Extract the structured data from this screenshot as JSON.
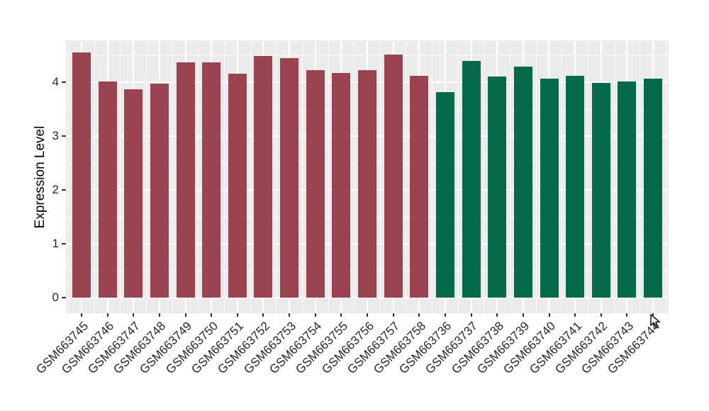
{
  "figure": {
    "background": "#FFFFFF"
  },
  "chart_data": {
    "type": "bar",
    "title": "",
    "xlabel": "",
    "ylabel": "Expression Level",
    "ylim": [
      -0.27,
      4.78
    ],
    "yticks": [
      0,
      1,
      2,
      3,
      4
    ],
    "grid": "on",
    "legend": "none",
    "panel_background": "#EBEBEB",
    "gridline_color": "#FFFFFF",
    "tick_mark_color": "#333333",
    "axis_text_color": "#262626",
    "group_colors": [
      "#9B4451",
      "#056A4B"
    ],
    "categories": [
      "GSM663745",
      "GSM663746",
      "GSM663747",
      "GSM663748",
      "GSM663749",
      "GSM663750",
      "GSM663751",
      "GSM663752",
      "GSM663753",
      "GSM663754",
      "GSM663755",
      "GSM663756",
      "GSM663757",
      "GSM663758",
      "GSM663736",
      "GSM663737",
      "GSM663738",
      "GSM663739",
      "GSM663740",
      "GSM663741",
      "GSM663742",
      "GSM663743",
      "GSM663744"
    ],
    "values": [
      4.55,
      4.01,
      3.87,
      3.98,
      4.37,
      4.37,
      4.16,
      4.49,
      4.45,
      4.22,
      4.17,
      4.22,
      4.51,
      4.12,
      3.82,
      4.39,
      4.1,
      4.29,
      4.07,
      4.12,
      3.99,
      4.01,
      4.07
    ],
    "bar_groups": [
      0,
      0,
      0,
      0,
      0,
      0,
      0,
      0,
      0,
      0,
      0,
      0,
      0,
      0,
      1,
      1,
      1,
      1,
      1,
      1,
      1,
      1,
      1
    ]
  }
}
